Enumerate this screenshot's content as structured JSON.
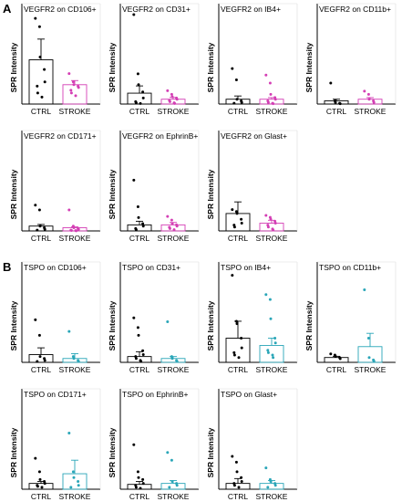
{
  "figure": {
    "panels": [
      {
        "letter": "A"
      },
      {
        "letter": "B"
      }
    ],
    "ylabel": "SPR Intensity",
    "categories": [
      "CTRL",
      "STROKE"
    ]
  },
  "colors": {
    "ctrl": "#000000",
    "stroke_a": "#d43fb5",
    "stroke_b": "#2aa6b8"
  },
  "chart_data": [
    {
      "type": "bar",
      "panel": "A",
      "title": "VEGFR2 on CD106+",
      "categories": [
        "CTRL",
        "STROKE"
      ],
      "ylim": [
        0,
        7
      ],
      "values": [
        3.2,
        1.4
      ],
      "errors": [
        1.5,
        0.3
      ],
      "points": {
        "CTRL": [
          6.2,
          5.6,
          3.4,
          2.5,
          1.6,
          1.3,
          0.8,
          0.5
        ],
        "STROKE": [
          2.2,
          1.6,
          1.4,
          1.3,
          1.2,
          1.0,
          0.8,
          0.6
        ]
      }
    },
    {
      "type": "bar",
      "panel": "A",
      "title": "VEGFR2 on CD31+",
      "categories": [
        "CTRL",
        "STROKE"
      ],
      "ylim": [
        0,
        8
      ],
      "values": [
        0.9,
        0.4
      ],
      "errors": [
        0.6,
        0.15
      ],
      "points": {
        "CTRL": [
          7.4,
          2.5,
          1.6,
          1.0,
          0.5,
          0.2,
          0.1,
          0.05
        ],
        "STROKE": [
          1.1,
          0.8,
          0.6,
          0.5,
          0.4,
          0.3,
          0.2,
          0.1,
          0.05
        ]
      }
    },
    {
      "type": "bar",
      "panel": "A",
      "title": "VEGFR2 on IB4+",
      "categories": [
        "CTRL",
        "STROKE"
      ],
      "ylim": [
        0,
        6
      ],
      "values": [
        0.3,
        0.3
      ],
      "errors": [
        0.2,
        0.1
      ],
      "points": {
        "CTRL": [
          2.2,
          1.5,
          0.3,
          0.2,
          0.1,
          0.05
        ],
        "STROKE": [
          1.8,
          1.3,
          0.6,
          0.4,
          0.3,
          0.2,
          0.1,
          0.05,
          0.02
        ]
      }
    },
    {
      "type": "bar",
      "panel": "A",
      "title": "VEGFR2 on CD11b+",
      "categories": [
        "CTRL",
        "STROKE"
      ],
      "ylim": [
        0,
        6
      ],
      "values": [
        0.2,
        0.3
      ],
      "errors": [
        0.1,
        0.1
      ],
      "points": {
        "CTRL": [
          1.3,
          0.2,
          0.1,
          0.05,
          0.02
        ],
        "STROKE": [
          0.8,
          0.6,
          0.3,
          0.2,
          0.1
        ]
      }
    },
    {
      "type": "bar",
      "panel": "A",
      "title": "VEGFR2 on CD171+",
      "categories": [
        "CTRL",
        "STROKE"
      ],
      "ylim": [
        0,
        6
      ],
      "values": [
        0.3,
        0.2
      ],
      "errors": [
        0.1,
        0.05
      ],
      "points": {
        "CTRL": [
          1.6,
          1.3,
          0.3,
          0.2,
          0.1,
          0.05
        ],
        "STROKE": [
          1.3,
          0.3,
          0.2,
          0.15,
          0.1,
          0.05,
          0.03,
          0.02,
          0.01
        ]
      }
    },
    {
      "type": "bar",
      "panel": "A",
      "title": "VEGFR2 on EphrinB+",
      "categories": [
        "CTRL",
        "STROKE"
      ],
      "ylim": [
        0,
        8
      ],
      "values": [
        0.5,
        0.5
      ],
      "errors": [
        0.3,
        0.2
      ],
      "points": {
        "CTRL": [
          4.2,
          2.0,
          1.1,
          0.6,
          0.4,
          0.2,
          0.1
        ],
        "STROKE": [
          1.2,
          0.9,
          0.6,
          0.5,
          0.4,
          0.3,
          0.2,
          0.1
        ]
      }
    },
    {
      "type": "bar",
      "panel": "A",
      "title": "VEGFR2 on Glast+",
      "categories": [
        "CTRL",
        "STROKE"
      ],
      "ylim": [
        0,
        5
      ],
      "values": [
        0.9,
        0.4
      ],
      "errors": [
        0.6,
        0.15
      ],
      "points": {
        "CTRL": [
          1.1,
          1.0,
          0.9,
          0.6,
          0.4,
          0.3,
          0.2
        ],
        "STROKE": [
          0.8,
          0.7,
          0.6,
          0.5,
          0.4,
          0.3,
          0.2,
          0.1,
          0.05
        ]
      }
    },
    {
      "type": "bar",
      "panel": "B",
      "title": "TSPO on CD106+",
      "categories": [
        "CTRL",
        "STROKE"
      ],
      "ylim": [
        0,
        5
      ],
      "values": [
        0.4,
        0.2
      ],
      "errors": [
        0.35,
        0.25
      ],
      "points": {
        "CTRL": [
          2.2,
          1.4,
          0.3,
          0.2,
          0.1,
          0.05
        ],
        "STROKE": [
          1.6,
          0.3,
          0.2,
          0.1,
          0.05
        ]
      }
    },
    {
      "type": "bar",
      "panel": "B",
      "title": "TSPO on CD31+",
      "categories": [
        "CTRL",
        "STROKE"
      ],
      "ylim": [
        0,
        5
      ],
      "values": [
        0.3,
        0.2
      ],
      "errors": [
        0.25,
        0.1
      ],
      "points": {
        "CTRL": [
          2.3,
          1.8,
          1.4,
          0.6,
          0.4,
          0.3,
          0.2,
          0.1,
          0.05
        ],
        "STROKE": [
          2.1,
          0.3,
          0.2,
          0.1,
          0.05
        ]
      }
    },
    {
      "type": "bar",
      "panel": "B",
      "title": "TSPO on IB4+",
      "categories": [
        "CTRL",
        "STROKE"
      ],
      "ylim": [
        0,
        4
      ],
      "values": [
        1.0,
        0.7
      ],
      "errors": [
        0.7,
        0.3
      ],
      "points": {
        "CTRL": [
          3.6,
          1.7,
          1.6,
          1.0,
          0.6,
          0.4,
          0.3,
          0.2
        ],
        "STROKE": [
          2.8,
          2.6,
          1.8,
          1.0,
          0.8,
          0.5,
          0.4,
          0.3,
          0.2
        ]
      }
    },
    {
      "type": "bar",
      "panel": "B",
      "title": "TSPO on CD11b+",
      "categories": [
        "CTRL",
        "STROKE"
      ],
      "ylim": [
        0,
        4
      ],
      "values": [
        0.2,
        0.65
      ],
      "errors": [
        0.05,
        0.55
      ],
      "points": {
        "CTRL": [
          0.35,
          0.3,
          0.25,
          0.2,
          0.15
        ],
        "STROKE": [
          3.0,
          1.0,
          0.2,
          0.1,
          0.05
        ]
      }
    },
    {
      "type": "bar",
      "panel": "B",
      "title": "TSPO on CD171+",
      "categories": [
        "CTRL",
        "STROKE"
      ],
      "ylim": [
        0,
        5
      ],
      "values": [
        0.3,
        0.8
      ],
      "errors": [
        0.1,
        0.7
      ],
      "points": {
        "CTRL": [
          1.6,
          0.9,
          0.5,
          0.4,
          0.3,
          0.2,
          0.15,
          0.1
        ],
        "STROKE": [
          2.9,
          0.9,
          0.6,
          0.4,
          0.2,
          0.1
        ]
      }
    },
    {
      "type": "bar",
      "panel": "B",
      "title": "TSPO on EphrinB+",
      "categories": [
        "CTRL",
        "STROKE"
      ],
      "ylim": [
        0,
        5
      ],
      "values": [
        0.25,
        0.3
      ],
      "errors": [
        0.15,
        0.15
      ],
      "points": {
        "CTRL": [
          2.3,
          0.9,
          0.6,
          0.5,
          0.3,
          0.2,
          0.1,
          0.05
        ],
        "STROKE": [
          1.9,
          1.5,
          0.4,
          0.3,
          0.2,
          0.1
        ]
      }
    },
    {
      "type": "bar",
      "panel": "B",
      "title": "TSPO on Glast+",
      "categories": [
        "CTRL",
        "STROKE"
      ],
      "ylim": [
        0,
        5
      ],
      "values": [
        0.3,
        0.3
      ],
      "errors": [
        0.25,
        0.15
      ],
      "points": {
        "CTRL": [
          1.7,
          1.4,
          0.9,
          0.6,
          0.4,
          0.3,
          0.2,
          0.1
        ],
        "STROKE": [
          1.1,
          0.5,
          0.4,
          0.3,
          0.2,
          0.1
        ]
      }
    }
  ]
}
